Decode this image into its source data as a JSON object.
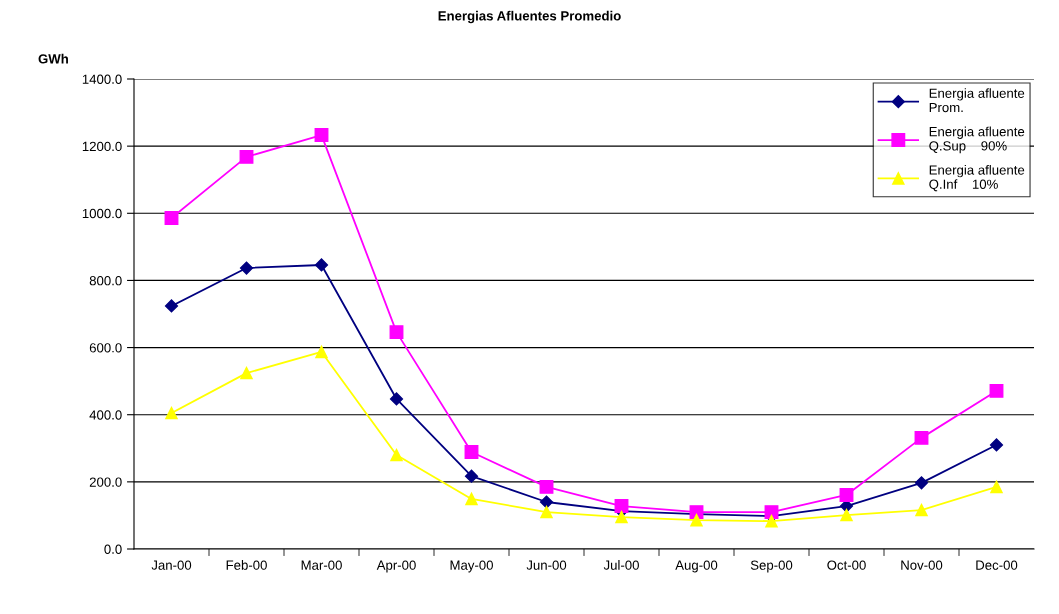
{
  "chart_data": {
    "type": "line",
    "title": "Energias Afluentes Promedio",
    "ylabel": "GWh",
    "categories": [
      "Jan-00",
      "Feb-00",
      "Mar-00",
      "Apr-00",
      "May-00",
      "Jun-00",
      "Jul-00",
      "Aug-00",
      "Sep-00",
      "Oct-00",
      "Nov-00",
      "Dec-00"
    ],
    "series": [
      {
        "name": "Energia afluente\nProm.",
        "color": "#000080",
        "marker": "diamond",
        "values": [
          724,
          837,
          846,
          447,
          217,
          140,
          113,
          104,
          98,
          128,
          197,
          310
        ]
      },
      {
        "name": "Energia afluente\nQ.Sup    90%",
        "color": "#ff00ff",
        "marker": "square",
        "values": [
          986,
          1168,
          1233,
          646,
          289,
          185,
          128,
          110,
          110,
          161,
          331,
          471
        ]
      },
      {
        "name": "Energia afluente\nQ.Inf    10%",
        "color": "#ffff00",
        "marker": "triangle",
        "values": [
          405,
          524,
          587,
          280,
          149,
          110,
          95,
          86,
          83,
          101,
          116,
          185
        ]
      }
    ],
    "ylim": [
      0,
      1400
    ],
    "yticks": [
      {
        "value": 0,
        "label": "0.0"
      },
      {
        "value": 200,
        "label": "200.0"
      },
      {
        "value": 400,
        "label": "400.0"
      },
      {
        "value": 600,
        "label": "600.0"
      },
      {
        "value": 800,
        "label": "800.0"
      },
      {
        "value": 1000,
        "label": "1000.0"
      },
      {
        "value": 1200,
        "label": "1200.0"
      },
      {
        "value": 1400,
        "label": "1400.0"
      }
    ],
    "grid": "y",
    "legend": "top right",
    "line_style": "solid"
  }
}
